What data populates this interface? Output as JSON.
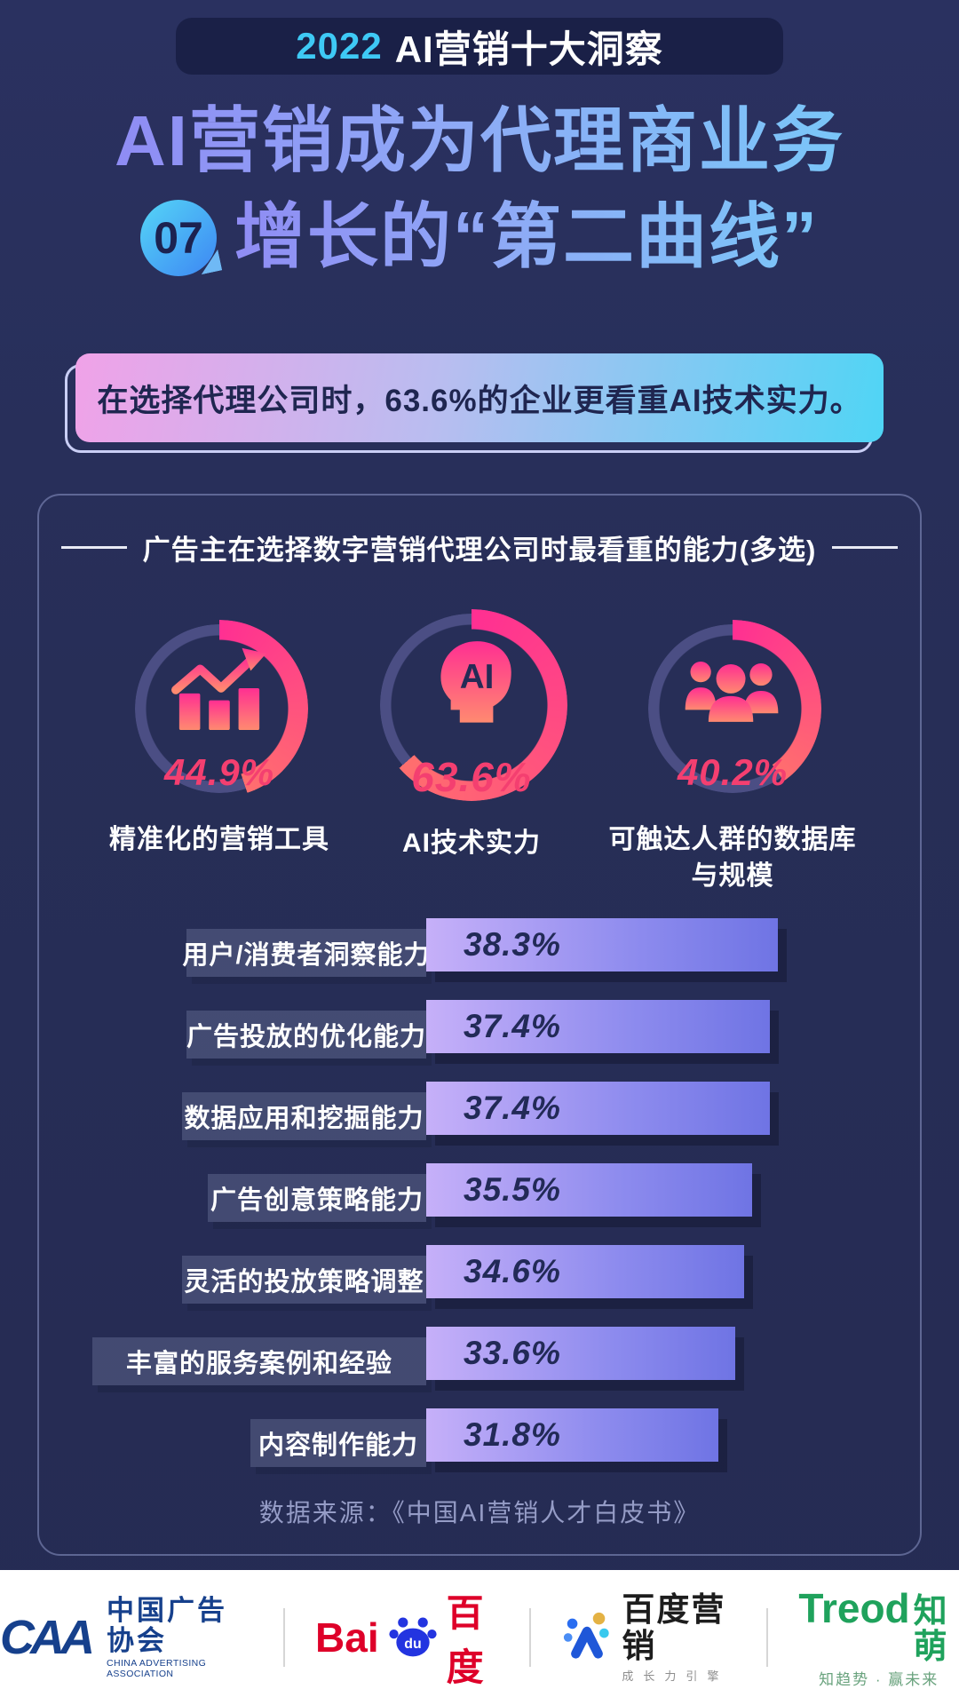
{
  "banner": {
    "year": "2022",
    "title": "AI营销十大洞察"
  },
  "title": {
    "line1": "AI营销成为代理商业务",
    "badge": "07",
    "line2": "增长的“第二曲线”"
  },
  "highlight": "在选择代理公司时，63.6%的企业更看重AI技术实力。",
  "chart_data": {
    "type": "bar",
    "title": "广告主在选择数字营销代理公司时最看重的能力(多选)",
    "donuts": [
      {
        "label": "精准化的营销工具",
        "value": 44.9,
        "icon": "bar-chart-arrow-icon"
      },
      {
        "label": "AI技术实力",
        "value": 63.6,
        "icon": "ai-head-icon"
      },
      {
        "label": "可触达人群的数据库与规模",
        "value": 40.2,
        "icon": "people-group-icon"
      }
    ],
    "bars": {
      "categories": [
        "用户/消费者洞察能力",
        "广告投放的优化能力",
        "数据应用和挖掘能力",
        "广告创意策略能力",
        "灵活的投放策略调整",
        "丰富的服务案例和经验",
        "内容制作能力"
      ],
      "values": [
        38.3,
        37.4,
        37.4,
        35.5,
        34.6,
        33.6,
        31.8
      ],
      "unit": "%",
      "xlim": [
        0,
        70
      ],
      "orientation": "horizontal",
      "grid": false
    },
    "source": "数据来源：《中国AI营销人才白皮书》"
  },
  "colors": {
    "background": "#272e57",
    "pill": "#1a2047",
    "cyan_accent": "#3ec9f5",
    "title_gradient_start": "#8f8cf4",
    "title_gradient_end": "#7ac6f8",
    "banner_gradient_start": "#f0a2e8",
    "banner_gradient_end": "#4fd5f5",
    "arc_pink_start": "#ff2f92",
    "arc_pink_end": "#ff6f6e",
    "ring_track": "#4b4e84",
    "percent_pink": "#f43f70",
    "bar_gradient_start": "#c6b0f9",
    "bar_gradient_end": "#6f74e4",
    "bar_value_navy": "#222a57"
  },
  "footer": {
    "caa": {
      "mark": "CAA",
      "cn": "中国广告协会",
      "en": "CHINA ADVERTISING ASSOCIATION"
    },
    "baidu": {
      "bai": "Bai",
      "du": "du",
      "cn": "百度"
    },
    "baidu_marketing": {
      "cn": "百度营销",
      "sub": "成长力引擎"
    },
    "zhimeng": {
      "en": "Treod",
      "cn": "知萌",
      "slogan": "知趋势 · 赢未来"
    }
  }
}
